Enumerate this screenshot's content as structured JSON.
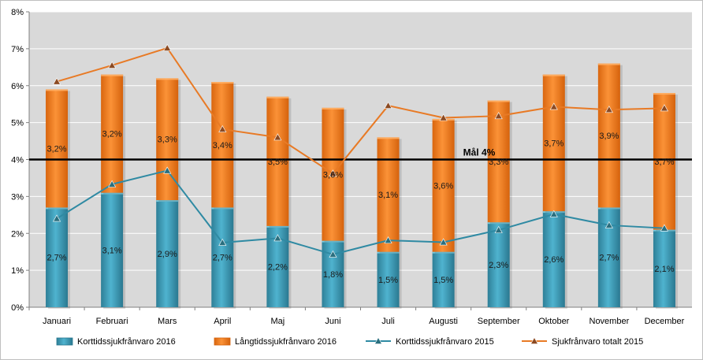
{
  "chart_data": {
    "type": "bar",
    "stacked": true,
    "categories": [
      "Januari",
      "Februari",
      "Mars",
      "April",
      "Maj",
      "Juni",
      "Juli",
      "Augusti",
      "September",
      "Oktober",
      "November",
      "December"
    ],
    "ylim": [
      0,
      8
    ],
    "yticks": [
      "0%",
      "1%",
      "2%",
      "3%",
      "4%",
      "5%",
      "6%",
      "7%",
      "8%"
    ],
    "grid": true,
    "legend_position": "bottom",
    "bar_series": [
      {
        "name": "Korttidssjukfrånvaro 2016",
        "color": "#3a98b3",
        "values": [
          2.7,
          3.1,
          2.9,
          2.7,
          2.2,
          1.8,
          1.5,
          1.5,
          2.3,
          2.6,
          2.7,
          2.1
        ],
        "labels": [
          "2,7%",
          "3,1%",
          "2,9%",
          "2,7%",
          "2,2%",
          "1,8%",
          "1,5%",
          "1,5%",
          "2,3%",
          "2,6%",
          "2,7%",
          "2,1%"
        ]
      },
      {
        "name": "Långtidssjukfrånvaro 2016",
        "color": "#f07d1a",
        "values": [
          3.2,
          3.2,
          3.3,
          3.4,
          3.5,
          3.6,
          3.1,
          3.6,
          3.3,
          3.7,
          3.9,
          3.7
        ],
        "labels": [
          "3,2%",
          "3,2%",
          "3,3%",
          "3,4%",
          "3,5%",
          "3,6%",
          "3,1%",
          "3,6%",
          "3,3%",
          "3,7%",
          "3,9%",
          "3,7%"
        ]
      }
    ],
    "line_series": [
      {
        "name": "Korttidssjukfrånvaro 2015",
        "color": "#2f8aa3",
        "marker_color": "#2a6f7f",
        "values": [
          2.4,
          3.33,
          3.7,
          1.75,
          1.87,
          1.43,
          1.81,
          1.76,
          2.09,
          2.52,
          2.22,
          2.14
        ]
      },
      {
        "name": "Sjukfrånvaro totalt 2015",
        "color": "#e87a25",
        "marker_color": "#8b4a22",
        "values": [
          6.11,
          6.55,
          7.02,
          4.82,
          4.6,
          3.62,
          5.46,
          5.13,
          5.18,
          5.43,
          5.35,
          5.39
        ]
      }
    ],
    "target_line": {
      "value": 4,
      "label": "Mål 4%",
      "color": "#000000"
    },
    "plot_background": "#d9d9d9",
    "grid_color": "#ffffff"
  }
}
